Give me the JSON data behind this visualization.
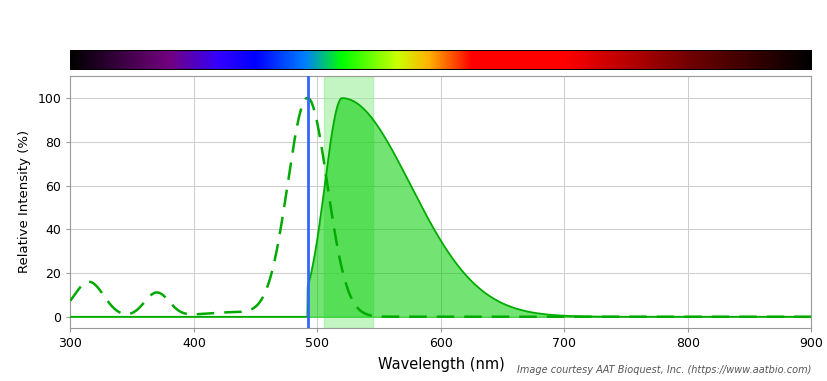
{
  "xlabel": "Wavelength (nm)",
  "ylabel": "Relative Intensity (%)",
  "xlim": [
    300,
    900
  ],
  "ylim": [
    -5,
    110
  ],
  "excitation_line_x": 492,
  "highlight_region": [
    505,
    545
  ],
  "highlight_color": "#90EE90",
  "emission_fill_color": "#00CC00",
  "emission_line_color": "#00AA00",
  "absorption_line_color": "#00AA00",
  "excitation_line_color": "#3366FF",
  "credit_text": "Image courtesy AAT Bioquest, Inc. (https://www.aatbio.com)",
  "yticks": [
    0,
    20,
    40,
    60,
    80,
    100
  ],
  "xticks": [
    300,
    400,
    500,
    600,
    700,
    800,
    900
  ],
  "grid_color": "#cccccc"
}
